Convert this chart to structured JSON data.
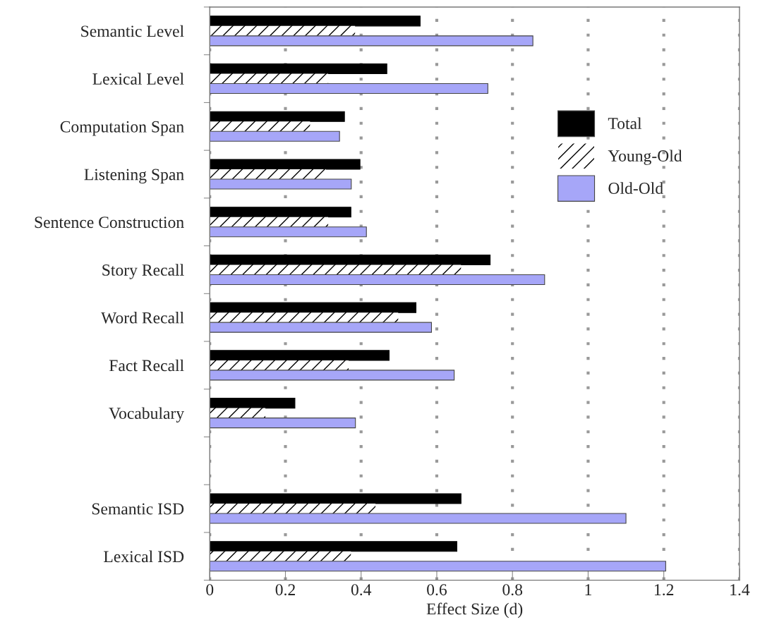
{
  "chart_data": {
    "type": "bar",
    "orientation": "horizontal",
    "categories": [
      "Semantic Level",
      "Lexical Level",
      "Computation Span",
      "Listening Span",
      "Sentence Construction",
      "Story Recall",
      "Word Recall",
      "Fact Recall",
      "Vocabulary",
      null,
      "Semantic ISD",
      "Lexical ISD"
    ],
    "series": [
      {
        "name": "Total",
        "color": "#000000",
        "values": [
          0.556,
          0.468,
          0.356,
          0.397,
          0.373,
          0.741,
          0.545,
          0.474,
          0.225,
          null,
          0.664,
          0.653
        ]
      },
      {
        "name": "Young-Old",
        "color": "#ffffff",
        "values": [
          0.384,
          0.313,
          0.265,
          0.307,
          0.313,
          0.664,
          0.498,
          0.367,
          0.147,
          null,
          0.438,
          0.373
        ]
      },
      {
        "name": "Old-Old",
        "color": "#a6a6f8",
        "values": [
          0.854,
          0.735,
          0.343,
          0.374,
          0.414,
          0.885,
          0.586,
          0.646,
          0.385,
          null,
          1.1,
          1.205
        ]
      }
    ],
    "xlabel": "Effect Size (d)",
    "xlim": [
      0,
      1.4
    ],
    "xticks": [
      0,
      0.2,
      0.4,
      0.6,
      0.8,
      1,
      1.2,
      1.4
    ],
    "grid": "x",
    "legend": "right"
  }
}
